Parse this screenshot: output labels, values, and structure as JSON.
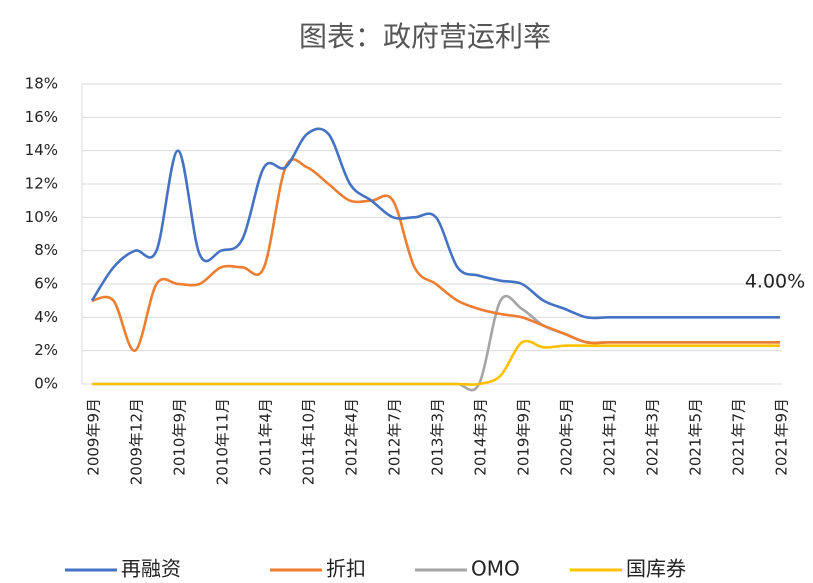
{
  "chart_data": {
    "type": "line",
    "title": "图表：政府营运利率",
    "categories": [
      "2009年9月",
      null,
      "2009年12月",
      null,
      "2010年9月",
      null,
      "2010年11月",
      null,
      "2011年4月",
      null,
      "2011年10月",
      null,
      "2012年4月",
      null,
      "2012年7月",
      null,
      "2013年3月",
      null,
      "2014年3月",
      null,
      "2019年9月",
      null,
      "2020年5月",
      null,
      "2021年1月",
      null,
      "2021年3月",
      null,
      "2021年5月",
      null,
      "2021年7月",
      null,
      "2021年9月"
    ],
    "series": [
      {
        "name": "再融资",
        "color": "#4472c4",
        "values": [
          5,
          7,
          8,
          8,
          14,
          7.8,
          8,
          8.7,
          13,
          13,
          15,
          15,
          12,
          11,
          10,
          10,
          10,
          7,
          6.5,
          6.2,
          6,
          5,
          4.5,
          4,
          4,
          4,
          4,
          4,
          4,
          4,
          4,
          4,
          4
        ]
      },
      {
        "name": "折扣",
        "color": "#ed7d31",
        "values": [
          5,
          5,
          2,
          6,
          6,
          6,
          7,
          7,
          7,
          13,
          13,
          12,
          11,
          11,
          11,
          7,
          6,
          5,
          4.5,
          4.2,
          4,
          3.5,
          3,
          2.5,
          2.5,
          2.5,
          2.5,
          2.5,
          2.5,
          2.5,
          2.5,
          2.5,
          2.5
        ]
      },
      {
        "name": "OMO",
        "color": "#a5a5a5",
        "values": [
          0,
          0,
          0,
          0,
          0,
          0,
          0,
          0,
          0,
          0,
          0,
          0,
          0,
          0,
          0,
          0,
          0,
          0,
          0,
          5,
          4.5,
          3.5,
          3,
          2.5,
          2.5,
          2.5,
          2.5,
          2.5,
          2.5,
          2.5,
          2.5,
          2.5,
          2.5
        ]
      },
      {
        "name": "国库券",
        "color": "#ffc000",
        "values": [
          0,
          0,
          0,
          0,
          0,
          0,
          0,
          0,
          0,
          0,
          0,
          0,
          0,
          0,
          0,
          0,
          0,
          0,
          0,
          0.5,
          2.5,
          2.2,
          2.3,
          2.3,
          2.3,
          2.3,
          2.3,
          2.3,
          2.3,
          2.3,
          2.3,
          2.3,
          2.3
        ]
      }
    ],
    "annotation": "4.00%",
    "ylim": [
      0,
      18
    ],
    "yticks": [
      {
        "value": 0,
        "label": "0%"
      },
      {
        "value": 2,
        "label": "2%"
      },
      {
        "value": 4,
        "label": "4%"
      },
      {
        "value": 6,
        "label": "6%"
      },
      {
        "value": 8,
        "label": "8%"
      },
      {
        "value": 10,
        "label": "10%"
      },
      {
        "value": 12,
        "label": "12%"
      },
      {
        "value": 14,
        "label": "14%"
      },
      {
        "value": 16,
        "label": "16%"
      },
      {
        "value": 18,
        "label": "18%"
      }
    ],
    "grid": true
  }
}
